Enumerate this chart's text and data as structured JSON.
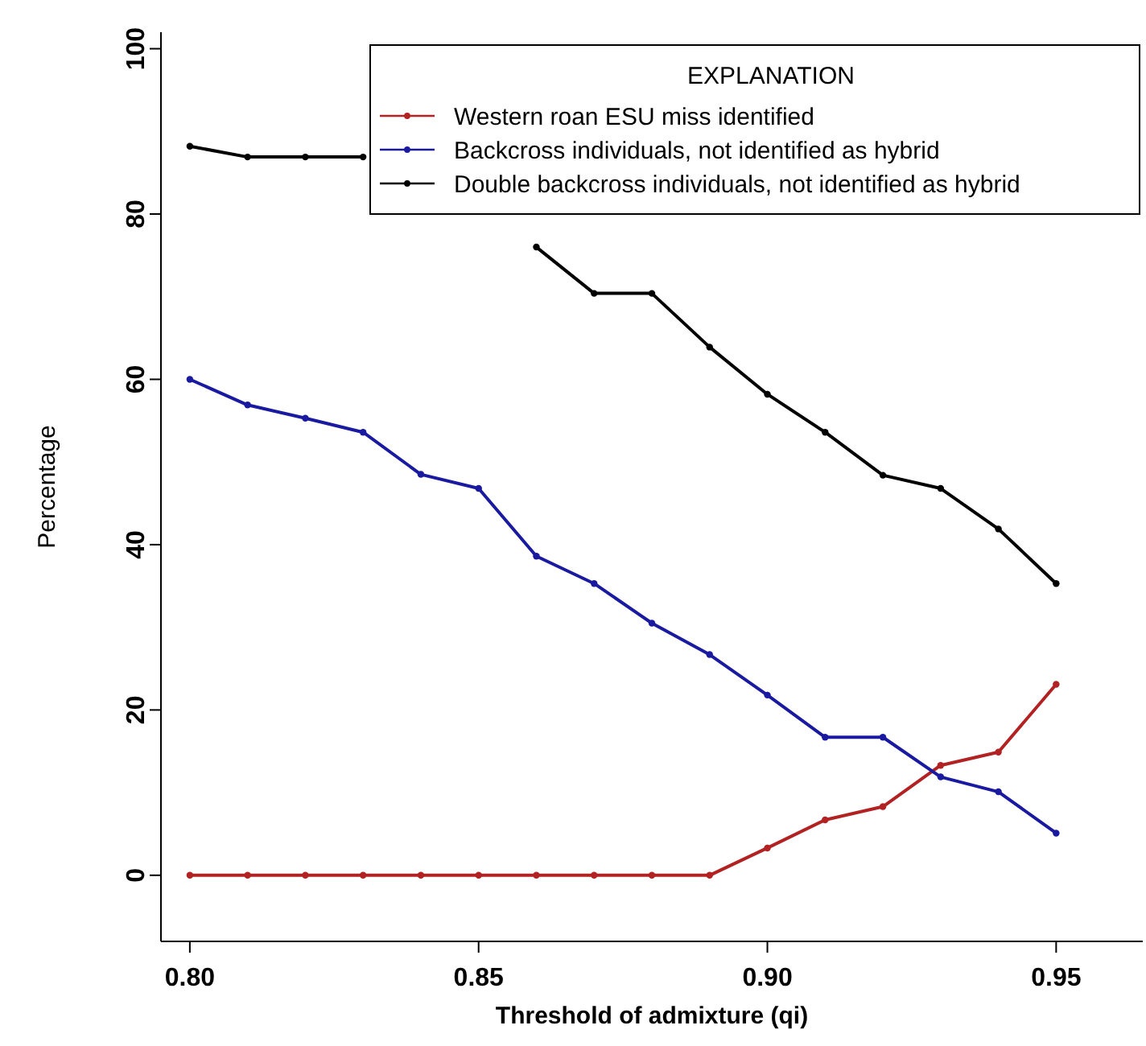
{
  "chart_data": {
    "type": "line",
    "xlabel": "Threshold of admixture (qi)",
    "ylabel": "Percentage",
    "x": [
      0.8,
      0.81,
      0.82,
      0.83,
      0.84,
      0.85,
      0.86,
      0.87,
      0.88,
      0.89,
      0.9,
      0.91,
      0.92,
      0.93,
      0.94,
      0.95
    ],
    "series": [
      {
        "name": "Western roan ESU miss identified",
        "color": "#b22222",
        "values": [
          0,
          0,
          0,
          0,
          0,
          0,
          0,
          0,
          0,
          0,
          3.3,
          6.7,
          8.3,
          13.3,
          14.9,
          23.1
        ]
      },
      {
        "name": "Backcross individuals, not identified as hybrid",
        "color": "#1a1aa0",
        "values": [
          60,
          56.9,
          55.3,
          53.6,
          48.5,
          46.8,
          38.6,
          35.3,
          30.5,
          26.7,
          21.8,
          16.7,
          16.7,
          11.9,
          10.1,
          5.1
        ]
      },
      {
        "name": "Double backcross individuals, not identified as hybrid",
        "color": "#000000",
        "values": [
          88.2,
          86.9,
          86.9,
          86.9,
          null,
          null,
          76,
          70.4,
          70.4,
          63.9,
          58.2,
          53.6,
          48.4,
          46.8,
          41.9,
          35.3
        ]
      }
    ],
    "legend_title": "EXPLANATION",
    "legend": "top right",
    "marker": "circle",
    "line_style": "solid",
    "grid": false,
    "xlim": [
      0.795,
      0.965
    ],
    "xticks": [
      {
        "value": 0.8,
        "label": "0.80"
      },
      {
        "value": 0.85,
        "label": "0.85"
      },
      {
        "value": 0.9,
        "label": "0.90"
      },
      {
        "value": 0.95,
        "label": "0.95"
      }
    ],
    "ylim": [
      -8,
      102
    ],
    "yticks": [
      0,
      20,
      40,
      60,
      80,
      100
    ]
  }
}
